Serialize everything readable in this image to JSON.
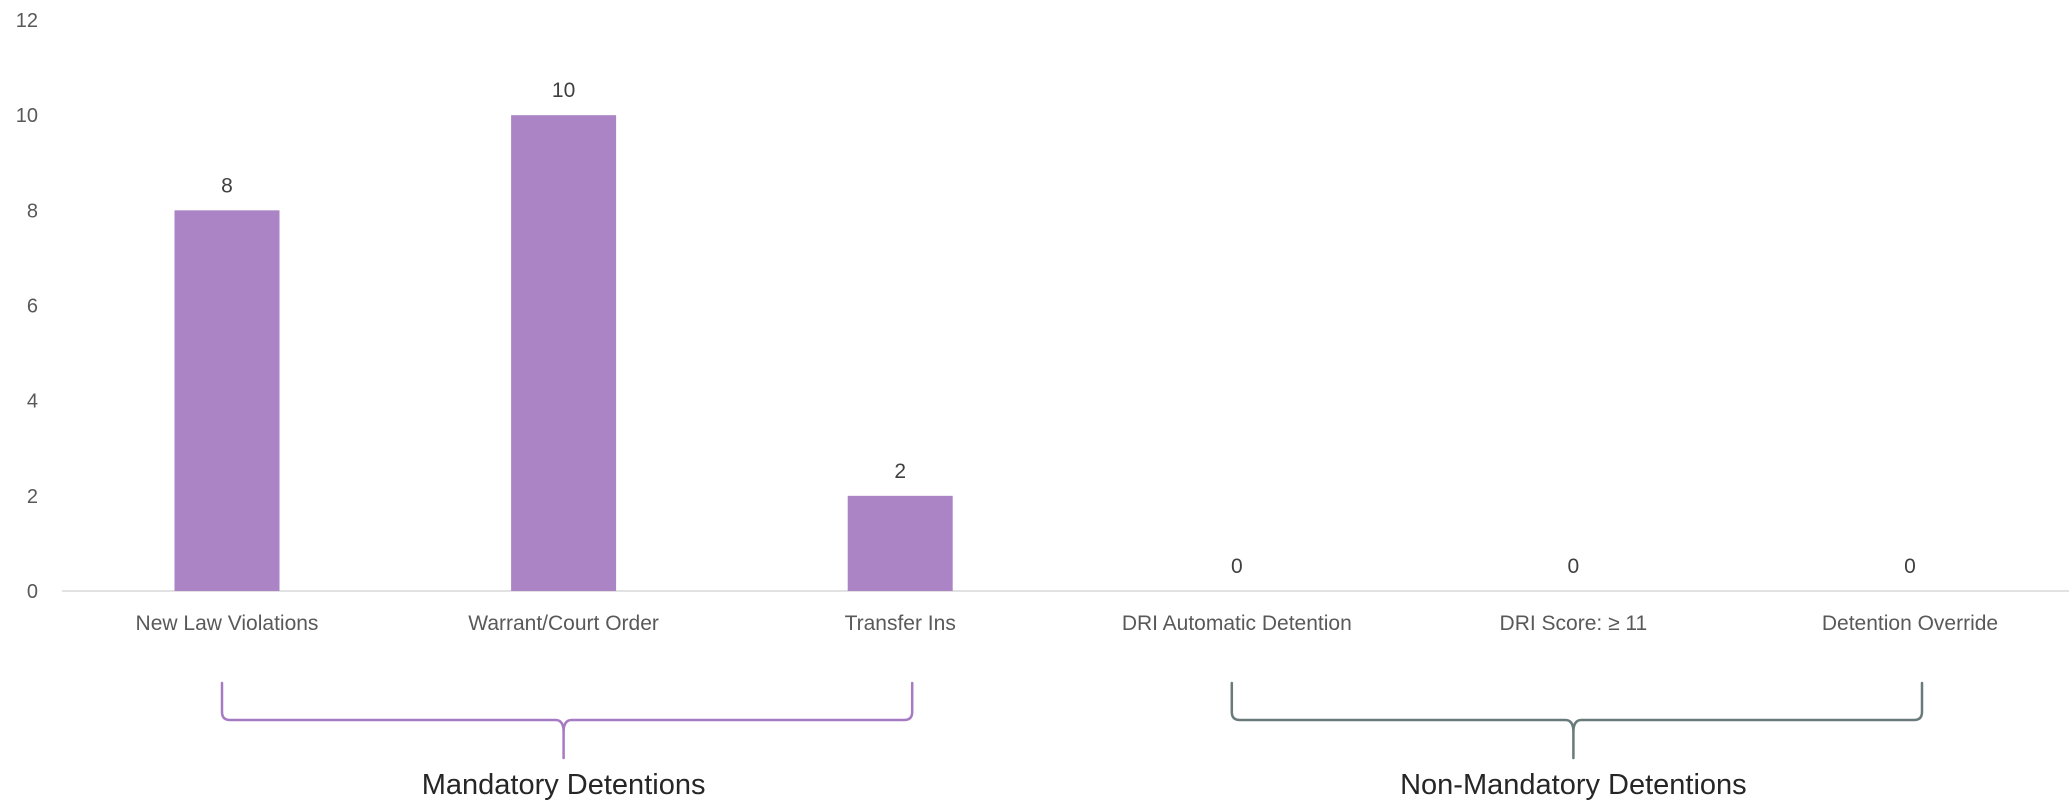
{
  "chart_data": {
    "type": "bar",
    "categories": [
      "New Law Violations",
      "Warrant/Court Order",
      "Transfer Ins",
      "DRI Automatic Detention",
      "DRI Score: ≥ 11",
      "Detention Override"
    ],
    "values": [
      8,
      10,
      2,
      0,
      0,
      0
    ],
    "data_labels": [
      "8",
      "10",
      "2",
      "0",
      "0",
      "0"
    ],
    "ylim": [
      0,
      12
    ],
    "yticks": [
      "0",
      "2",
      "4",
      "6",
      "8",
      "10",
      "12"
    ],
    "grid": false,
    "title": "",
    "xlabel": "",
    "ylabel": "",
    "bar_color": "#AB84C6",
    "groups": [
      {
        "label": "Mandatory Detentions",
        "start": 0,
        "end": 2,
        "color": "#A77BC4"
      },
      {
        "label": "Non-Mandatory Detentions",
        "start": 3,
        "end": 5,
        "color": "#6A7A7A"
      }
    ]
  }
}
